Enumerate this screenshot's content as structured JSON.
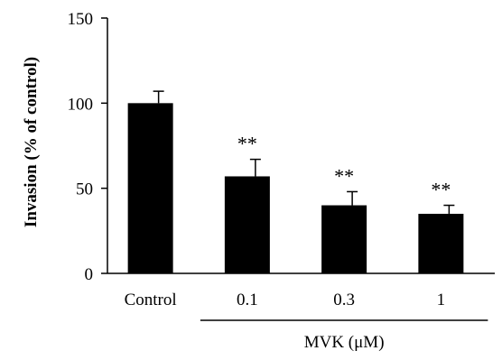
{
  "chart_data": {
    "type": "bar",
    "title": "",
    "xlabel": "",
    "ylabel": "Invasion (% of control)",
    "ylim": [
      0,
      150
    ],
    "yticks": [
      0,
      50,
      100,
      150
    ],
    "categories": [
      "Control",
      "0.1",
      "0.3",
      "1"
    ],
    "values": [
      100,
      57,
      40,
      35
    ],
    "errors": [
      7,
      10,
      8,
      5
    ],
    "significance": [
      "",
      "**",
      "**",
      "**"
    ],
    "group_label": "MVK (μM)",
    "bar_color": "#000000",
    "grid": false
  }
}
